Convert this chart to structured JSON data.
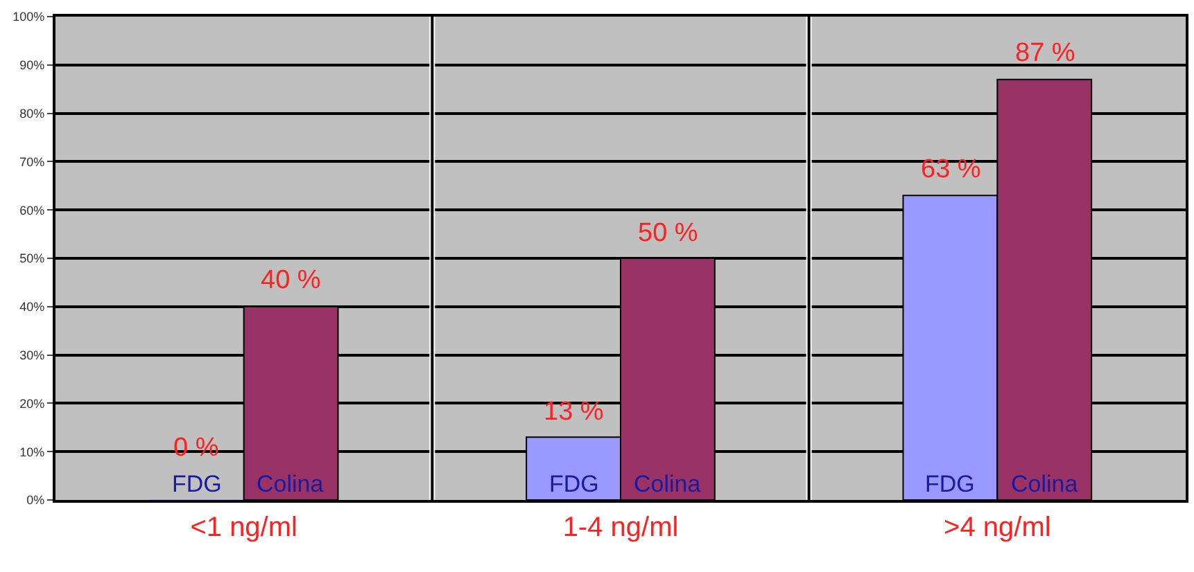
{
  "chart_data": {
    "type": "bar",
    "categories": [
      "<1 ng/ml",
      "1-4 ng/ml",
      ">4 ng/ml"
    ],
    "series": [
      {
        "name": "FDG",
        "color": "#9999ff",
        "values": [
          0,
          13,
          63
        ],
        "value_labels": [
          "0 %",
          "13 %",
          "63 %"
        ]
      },
      {
        "name": "Colina",
        "color": "#993366",
        "values": [
          40,
          50,
          87
        ],
        "value_labels": [
          "40 %",
          "50 %",
          "87 %"
        ]
      }
    ],
    "ylim": [
      0,
      100
    ],
    "yticks": [
      {
        "value": 0,
        "label": "0%"
      },
      {
        "value": 10,
        "label": "10%"
      },
      {
        "value": 20,
        "label": "20%"
      },
      {
        "value": 30,
        "label": "30%"
      },
      {
        "value": 40,
        "label": "40%"
      },
      {
        "value": 50,
        "label": "50%"
      },
      {
        "value": 60,
        "label": "60%"
      },
      {
        "value": 70,
        "label": "70%"
      },
      {
        "value": 80,
        "label": "80%"
      },
      {
        "value": 90,
        "label": "90%"
      },
      {
        "value": 100,
        "label": "100%"
      }
    ],
    "grid": true,
    "legend": false
  }
}
